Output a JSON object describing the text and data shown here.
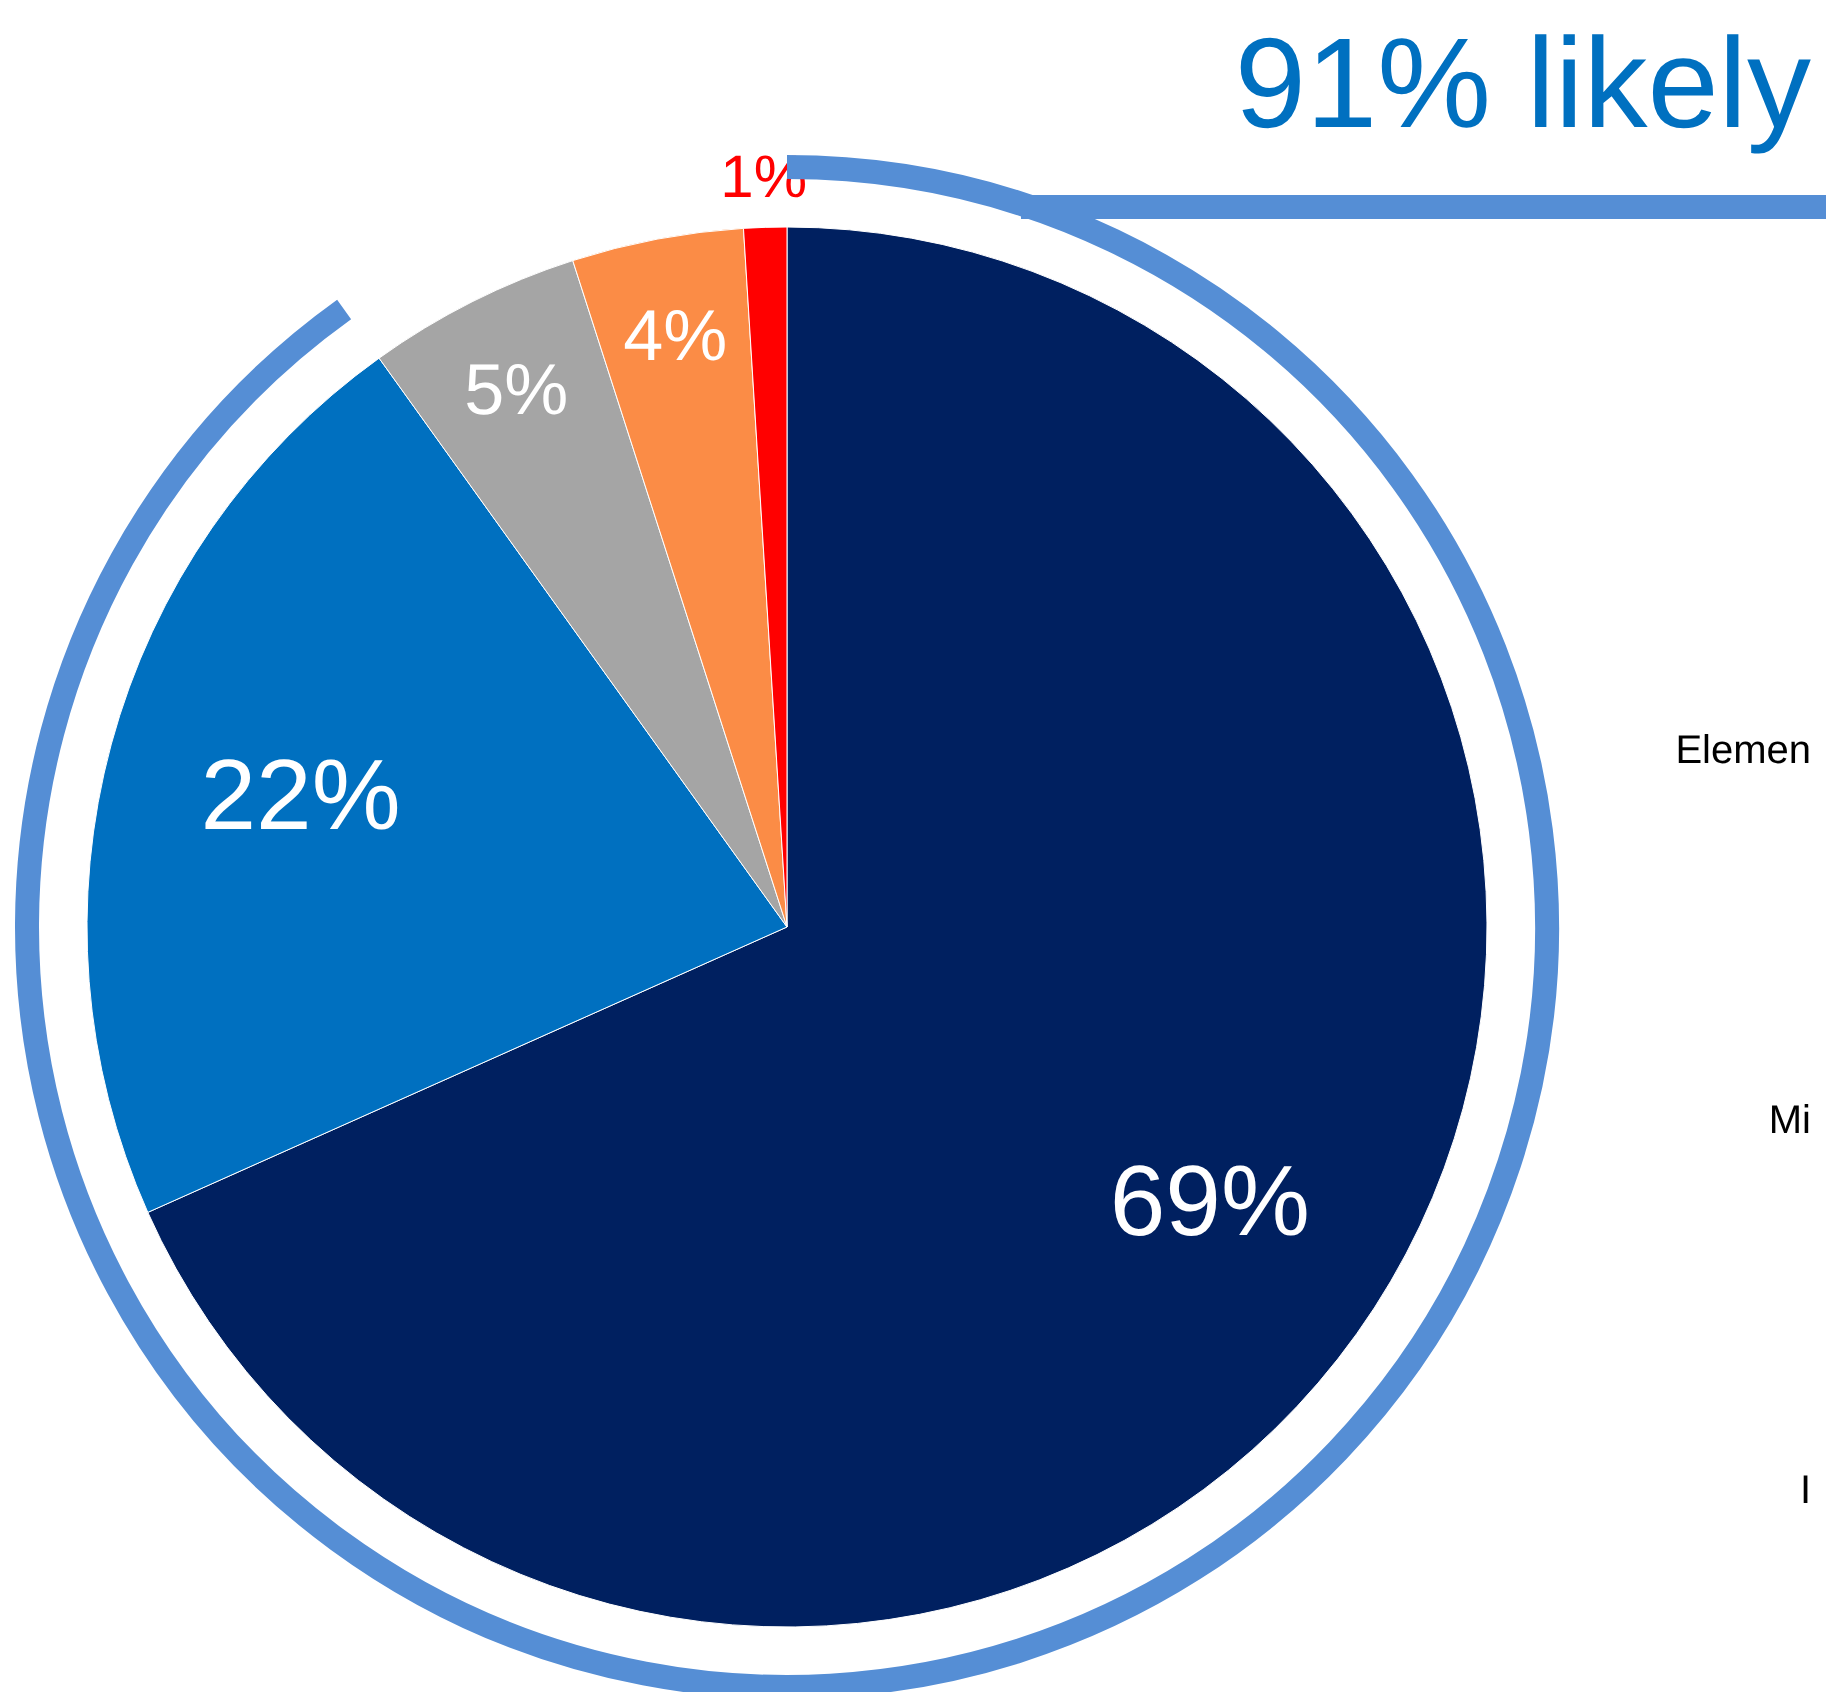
{
  "chart_data": {
    "type": "pie",
    "categories": [
      null,
      null,
      null,
      null,
      null
    ],
    "values": [
      69,
      22,
      5,
      4,
      1
    ],
    "colors": [
      "#002060",
      "#0070c0",
      "#a5a5a5",
      "#fb8c46",
      "#ff0000"
    ],
    "value_labels": [
      "69%",
      "22%",
      "5%",
      "4%",
      "1%"
    ],
    "annotations": [
      "91% likely",
      "Elemen",
      "Mi",
      "I"
    ]
  }
}
